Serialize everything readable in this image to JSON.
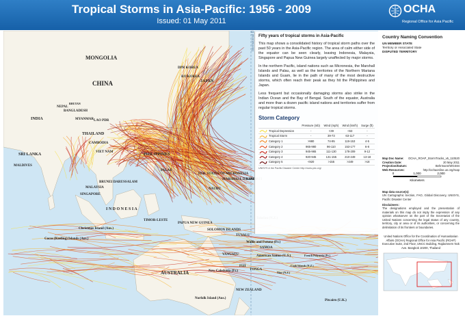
{
  "header": {
    "title": "Tropical Storms in Asia-Pacific: 1956 - 2009",
    "issued": "Issued: 01 May 2011",
    "logo": "OCHA",
    "logo_subtitle": "Regional Office for Asia Pacific"
  },
  "map": {
    "labels": [
      "MONGOLIA",
      "CHINA",
      "DPR KOREA",
      "RO KOREA",
      "JAPAN",
      "NEPAL",
      "BHUTAN",
      "BANGLADESH",
      "INDIA",
      "MYANMAR",
      "LAO PDR",
      "THAILAND",
      "CAMBODIA",
      "VIET NAM",
      "PHILIPPINES",
      "SRI LANKA",
      "MALDIVES",
      "BRUNEI DARUSSALAM",
      "MALAYSIA",
      "SINGAPORE",
      "I N D O N E S I A",
      "TIMOR-LESTE",
      "PAPUA NEW GUINEA",
      "PALAU",
      "FED. STATES OF MICRONESIA",
      "MARSHALL ISLANDS",
      "KIRIBATI",
      "NAURU",
      "SOLOMON ISLANDS",
      "TUVALU",
      "Tokelau (N.Z.)",
      "Wallis and Futuna (Fr.)",
      "SAMOA",
      "American Samoa (U.S.)",
      "VANUATU",
      "FIJI",
      "TONGA",
      "Niue (N.Z.)",
      "Cook Islands (N.Z.)",
      "French Polynesia (Fr.)",
      "Pitcairn (U.K.)",
      "New Caledonia (Fr.)",
      "Norfolk Island (Aus.)",
      "AUSTRALIA",
      "NEW ZEALAND",
      "Christmas Island (Aus.)",
      "Cocos (Keeling) Islands (Aus.)",
      "International Date Line"
    ]
  },
  "textbox": {
    "heading": "Fifty years of tropical storms in Asia-Pacific",
    "paragraphs": [
      "This map shows a consolidated history of tropical storm paths over the past 50 years in the Asia-Pacific region. The area of calm either side of the equator can be seen clearly, leaving Indonesia, Malaysia, Singapore and Papua New Guinea largely unaffected by major storms.",
      "In the northern Pacific, island nations such as Micronesia, the Marshall Islands and Palau, as well as the territories of the Northern Mariana Islands and Guam, lie in the path of many of the most destructive storms, which often reach their peak as they hit the Philippines and Japan.",
      "Less frequent but occasionally damaging storms also strike in the Indian Ocean and the Bay of Bengal. South of the equator, Australia and more than a dozen pacific island nations and territories suffer from regular tropical storms."
    ]
  },
  "storm_table": {
    "title": "Storm Category",
    "columns": [
      "Pressure (mb)",
      "Wind (mph)",
      "Wind (km/h)",
      "Surge (ft)"
    ],
    "rows": [
      [
        "Tropical Depression",
        "-",
        "<39",
        "<63",
        "-"
      ],
      [
        "Tropical Storm",
        "-",
        "39-73",
        "63-117",
        "-"
      ],
      [
        "Category 1",
        ">980",
        "74-95",
        "119-153",
        "4-5"
      ],
      [
        "Category 2",
        "965-980",
        "96-110",
        "153-177",
        "6-8"
      ],
      [
        "Category 3",
        "945-965",
        "111-130",
        "178-209",
        "9-12"
      ],
      [
        "Category 4",
        "920-945",
        "131-155",
        "210-249",
        "13-18"
      ],
      [
        "Category 5",
        "<920",
        ">155",
        ">249",
        ">18"
      ]
    ],
    "note": "UNISYS & the Pacific Disaster Center http://www.pdc.org/"
  },
  "panel": {
    "convention_title": "Country Naming Convention",
    "member": "UN MEMBER STATE",
    "territory": "Territory or Associated State",
    "disputed": "DISPUTED TERRITORY",
    "meta": [
      [
        "Map Doc Name:",
        "OCHA_ROAP_StormTracks_v5_110520"
      ],
      [
        "Creation Date:",
        "20 May 2011"
      ],
      [
        "Projection/Datum:",
        "Behrmann/WGS84"
      ],
      [
        "Web Resources:",
        "http://ochaonline.un.org/roap"
      ]
    ],
    "scale": [
      "0",
      "1,000",
      "2,000"
    ],
    "scale_unit": "Kilometers",
    "sources_title": "Map data source(s):",
    "sources": "UN Cartographic Section, FAO, Global Discovery, UNISYS, Pacific Disaster Center",
    "disclaimer_title": "Disclaimers:",
    "disclaimer": "The designations employed and the presentation of materials on this map do not imply the expression of any opinion whatsoever on the part of the Secretariat of the United Nations concerning the legal status of any country, territory, city or area or of its authorities, or concerning the delimitation of its frontiers or boundaries.",
    "address": "United Nations Office for the Coordination of Humanitarian Affairs (OCHA) Regional Office for Asia Pacific (ROAP) Executive Suite, 2nd Floor, UNCC Building, Rajdamnern Nok Ave. Bangkok 10200, Thailand"
  }
}
